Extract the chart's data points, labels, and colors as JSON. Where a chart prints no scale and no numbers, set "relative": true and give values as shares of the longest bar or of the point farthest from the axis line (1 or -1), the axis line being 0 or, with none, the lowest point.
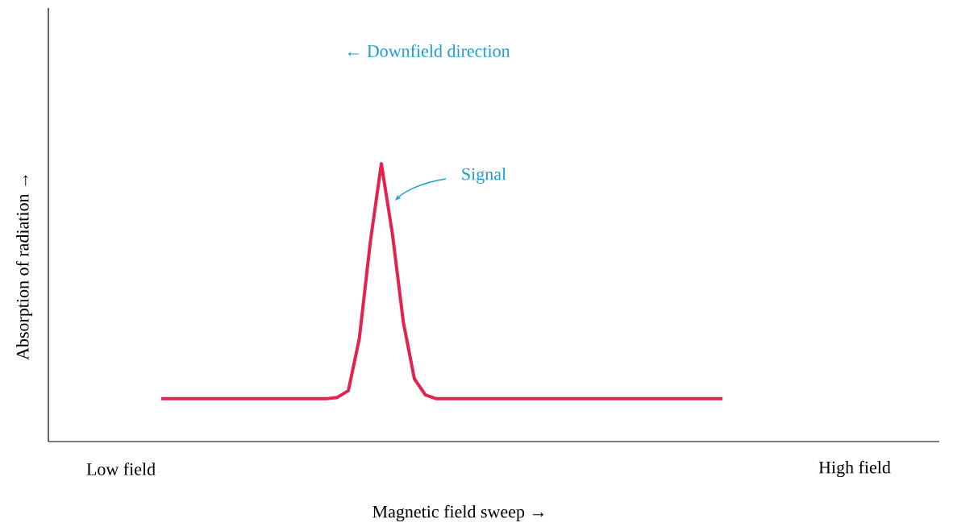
{
  "chart_data": {
    "type": "line",
    "relative": true,
    "xlabel": "Magnetic field sweep →",
    "annotations": [
      "← Downfield direction",
      "Signal",
      "Low field",
      "High field",
      "Absorption of radiation →"
    ],
    "categories": [
      null,
      null,
      null,
      null,
      null,
      null,
      null,
      null,
      null,
      null,
      null,
      null,
      null,
      null,
      null,
      null,
      null,
      null,
      null,
      null,
      null,
      null,
      null,
      null,
      null,
      null,
      null,
      null,
      null,
      null,
      null,
      null,
      null,
      null,
      null,
      null,
      null,
      null,
      null,
      null,
      null,
      null,
      null,
      null,
      null,
      null,
      null,
      null,
      null,
      null,
      null,
      null
    ],
    "series": [
      {
        "color": "#e2234f",
        "values": [
          0.154,
          0.154,
          0.154,
          0.154,
          0.154,
          0.154,
          0.154,
          0.154,
          0.154,
          0.154,
          0.154,
          0.154,
          0.154,
          0.154,
          0.154,
          0.154,
          0.159,
          0.183,
          0.371,
          0.719,
          1,
          0.748,
          0.429,
          0.226,
          0.168,
          0.154,
          0.154,
          0.154,
          0.154,
          0.154,
          0.154,
          0.154,
          0.154,
          0.154,
          0.154,
          0.154,
          0.154,
          0.154,
          0.154,
          0.154,
          0.154,
          0.154,
          0.154,
          0.154,
          0.154,
          0.154,
          0.154,
          0.154,
          0.154,
          0.154,
          0.154,
          0.154
        ]
      }
    ],
    "marker": "none",
    "line_style": "solid"
  }
}
